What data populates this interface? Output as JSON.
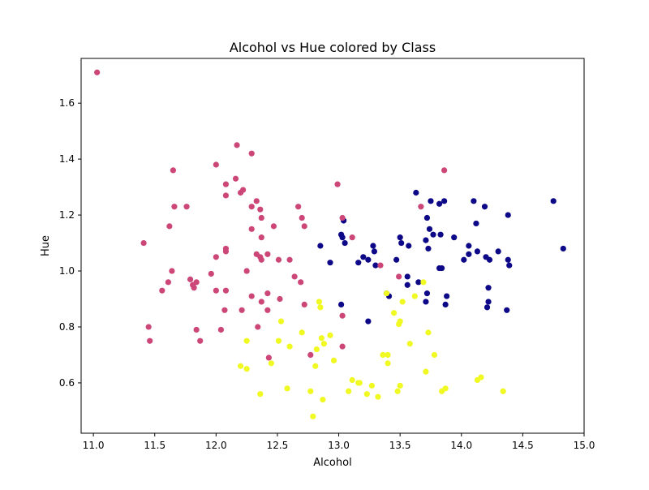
{
  "chart_data": {
    "type": "scatter",
    "title": "Alcohol vs Hue colored by Class",
    "xlabel": "Alcohol",
    "ylabel": "Hue",
    "xlim": [
      10.9,
      15.0
    ],
    "ylim": [
      0.42,
      1.76
    ],
    "xticks": [
      "11.0",
      "11.5",
      "12.0",
      "12.5",
      "13.0",
      "13.5",
      "14.0",
      "14.5",
      "15.0"
    ],
    "yticks": [
      "0.6",
      "0.8",
      "1.0",
      "1.2",
      "1.4",
      "1.6"
    ],
    "grid": false,
    "legend": "none",
    "colors": {
      "navy": "#0d0887",
      "magenta": "#cc4778",
      "yellow": "#f0f921"
    },
    "series": [
      {
        "color": "#0d0887",
        "points": [
          [
            12.85,
            1.09
          ],
          [
            12.93,
            1.03
          ],
          [
            13.02,
            1.13
          ],
          [
            13.03,
            1.12
          ],
          [
            13.04,
            1.18
          ],
          [
            13.02,
            0.88
          ],
          [
            13.16,
            1.03
          ],
          [
            13.2,
            1.05
          ],
          [
            13.24,
            1.04
          ],
          [
            13.24,
            0.82
          ],
          [
            13.28,
            1.09
          ],
          [
            13.29,
            1.07
          ],
          [
            13.3,
            1.02
          ],
          [
            13.39,
            0.92
          ],
          [
            13.41,
            0.91
          ],
          [
            13.47,
            1.04
          ],
          [
            13.5,
            1.12
          ],
          [
            13.51,
            1.1
          ],
          [
            13.56,
            0.95
          ],
          [
            13.57,
            1.09
          ],
          [
            13.63,
            1.28
          ],
          [
            13.65,
            0.96
          ],
          [
            13.71,
            1.11
          ],
          [
            13.72,
            1.19
          ],
          [
            13.73,
            1.08
          ],
          [
            13.74,
            1.15
          ],
          [
            13.75,
            1.25
          ],
          [
            13.77,
            1.13
          ],
          [
            13.82,
            1.24
          ],
          [
            13.82,
            1.01
          ],
          [
            13.83,
            1.13
          ],
          [
            13.84,
            1.01
          ],
          [
            13.86,
            1.25
          ],
          [
            13.87,
            0.88
          ],
          [
            13.88,
            0.91
          ],
          [
            13.94,
            1.12
          ],
          [
            14.02,
            1.04
          ],
          [
            14.06,
            1.06
          ],
          [
            14.06,
            1.09
          ],
          [
            14.1,
            1.25
          ],
          [
            14.12,
            1.17
          ],
          [
            14.13,
            1.07
          ],
          [
            14.19,
            1.23
          ],
          [
            14.2,
            1.05
          ],
          [
            14.21,
            0.87
          ],
          [
            14.22,
            0.94
          ],
          [
            14.22,
            0.89
          ],
          [
            14.23,
            1.04
          ],
          [
            14.3,
            1.07
          ],
          [
            14.37,
            0.86
          ],
          [
            14.38,
            1.04
          ],
          [
            14.38,
            1.2
          ],
          [
            14.39,
            1.02
          ],
          [
            14.75,
            1.25
          ],
          [
            14.83,
            1.08
          ],
          [
            13.72,
            0.92
          ],
          [
            13.56,
            0.98
          ],
          [
            13.05,
            1.1
          ],
          [
            13.71,
            0.89
          ]
        ]
      },
      {
        "color": "#cc4778",
        "points": [
          [
            11.03,
            1.71
          ],
          [
            11.41,
            1.1
          ],
          [
            11.45,
            0.8
          ],
          [
            11.46,
            0.75
          ],
          [
            11.56,
            0.93
          ],
          [
            11.61,
            0.96
          ],
          [
            11.62,
            1.16
          ],
          [
            11.64,
            1.0
          ],
          [
            11.65,
            1.36
          ],
          [
            11.66,
            1.23
          ],
          [
            11.76,
            1.23
          ],
          [
            11.79,
            0.97
          ],
          [
            11.81,
            0.95
          ],
          [
            11.82,
            0.94
          ],
          [
            11.84,
            0.96
          ],
          [
            11.84,
            0.79
          ],
          [
            11.87,
            0.75
          ],
          [
            11.96,
            0.99
          ],
          [
            12.0,
            1.38
          ],
          [
            12.0,
            0.93
          ],
          [
            12.0,
            1.05
          ],
          [
            12.04,
            0.79
          ],
          [
            12.07,
            0.86
          ],
          [
            12.08,
            1.31
          ],
          [
            12.08,
            1.27
          ],
          [
            12.08,
            1.08
          ],
          [
            12.08,
            1.07
          ],
          [
            12.08,
            0.93
          ],
          [
            12.16,
            1.33
          ],
          [
            12.17,
            1.45
          ],
          [
            12.2,
            1.28
          ],
          [
            12.21,
            0.86
          ],
          [
            12.22,
            1.29
          ],
          [
            12.25,
            1.0
          ],
          [
            12.29,
            1.42
          ],
          [
            12.29,
            1.23
          ],
          [
            12.29,
            1.15
          ],
          [
            12.29,
            0.91
          ],
          [
            12.33,
            1.25
          ],
          [
            12.33,
            1.06
          ],
          [
            12.34,
            0.8
          ],
          [
            12.36,
            1.05
          ],
          [
            12.36,
            1.22
          ],
          [
            12.37,
            1.19
          ],
          [
            12.37,
            1.12
          ],
          [
            12.37,
            1.04
          ],
          [
            12.37,
            0.89
          ],
          [
            12.42,
            1.06
          ],
          [
            12.42,
            0.92
          ],
          [
            12.42,
            0.86
          ],
          [
            12.43,
            0.69
          ],
          [
            12.47,
            1.16
          ],
          [
            12.51,
            1.04
          ],
          [
            12.52,
            0.9
          ],
          [
            12.6,
            1.04
          ],
          [
            12.64,
            0.98
          ],
          [
            12.67,
            1.23
          ],
          [
            12.69,
            0.96
          ],
          [
            12.7,
            1.19
          ],
          [
            12.72,
            1.16
          ],
          [
            12.72,
            0.88
          ],
          [
            12.77,
            0.7
          ],
          [
            12.99,
            1.31
          ],
          [
            13.03,
            1.19
          ],
          [
            13.03,
            0.84
          ],
          [
            13.03,
            0.73
          ],
          [
            13.11,
            1.12
          ],
          [
            13.34,
            1.02
          ],
          [
            13.49,
            0.98
          ],
          [
            13.67,
            1.23
          ],
          [
            13.86,
            1.36
          ]
        ]
      },
      {
        "color": "#f0f921",
        "points": [
          [
            12.2,
            0.66
          ],
          [
            12.25,
            0.65
          ],
          [
            12.25,
            0.75
          ],
          [
            12.36,
            0.56
          ],
          [
            12.45,
            0.67
          ],
          [
            12.51,
            0.75
          ],
          [
            12.53,
            0.82
          ],
          [
            12.58,
            0.58
          ],
          [
            12.6,
            0.73
          ],
          [
            12.7,
            0.78
          ],
          [
            12.77,
            0.57
          ],
          [
            12.79,
            0.48
          ],
          [
            12.81,
            0.66
          ],
          [
            12.82,
            0.72
          ],
          [
            12.84,
            0.89
          ],
          [
            12.85,
            0.87
          ],
          [
            12.86,
            0.76
          ],
          [
            12.87,
            0.54
          ],
          [
            12.88,
            0.74
          ],
          [
            12.93,
            0.77
          ],
          [
            12.96,
            0.68
          ],
          [
            13.08,
            0.57
          ],
          [
            13.11,
            0.61
          ],
          [
            13.16,
            0.6
          ],
          [
            13.17,
            0.6
          ],
          [
            13.23,
            0.56
          ],
          [
            13.27,
            0.59
          ],
          [
            13.32,
            0.55
          ],
          [
            13.36,
            0.7
          ],
          [
            13.4,
            0.67
          ],
          [
            13.4,
            0.7
          ],
          [
            13.45,
            0.85
          ],
          [
            13.48,
            0.57
          ],
          [
            13.49,
            0.81
          ],
          [
            13.5,
            0.59
          ],
          [
            13.52,
            0.89
          ],
          [
            13.58,
            0.74
          ],
          [
            13.62,
            0.91
          ],
          [
            13.69,
            0.96
          ],
          [
            13.71,
            0.64
          ],
          [
            13.73,
            0.78
          ],
          [
            13.78,
            0.7
          ],
          [
            13.84,
            0.57
          ],
          [
            13.87,
            0.58
          ],
          [
            14.13,
            0.61
          ],
          [
            14.16,
            0.62
          ],
          [
            14.34,
            0.57
          ],
          [
            13.5,
            0.82
          ],
          [
            13.39,
            0.92
          ]
        ]
      }
    ]
  }
}
